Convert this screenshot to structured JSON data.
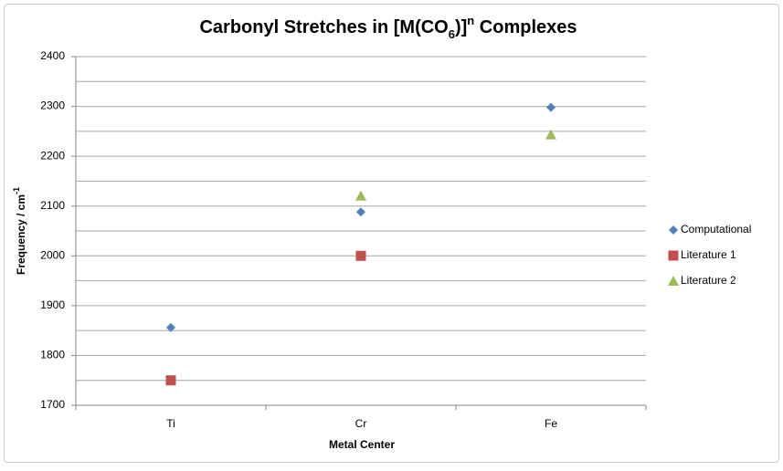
{
  "chart_data": {
    "type": "scatter",
    "title": [
      "Carbonyl Stretches in [M(CO",
      "6",
      ")]",
      "n",
      " Complexes"
    ],
    "x_label": "Metal Center",
    "y_label": [
      "Frequency / cm",
      "-1"
    ],
    "categories": [
      "Ti",
      "Cr",
      "Fe"
    ],
    "series": [
      {
        "name": "Computational",
        "color": "#4f81bd",
        "marker": "diamond",
        "values": [
          1856,
          2088,
          2298
        ]
      },
      {
        "name": "Literature 1",
        "color": "#c0504d",
        "marker": "square",
        "values": [
          1750,
          2000,
          null
        ]
      },
      {
        "name": "Literature 2",
        "color": "#9bbb59",
        "marker": "triangle",
        "values": [
          null,
          2120,
          2243
        ]
      }
    ],
    "ylim": [
      1700,
      2400
    ],
    "yticks": [
      1700,
      1800,
      1900,
      2000,
      2100,
      2200,
      2300,
      2400
    ],
    "minor_yticks": [
      1750,
      1850,
      1950,
      2050,
      2150,
      2250,
      2350
    ],
    "grid": true,
    "legend": "right"
  }
}
